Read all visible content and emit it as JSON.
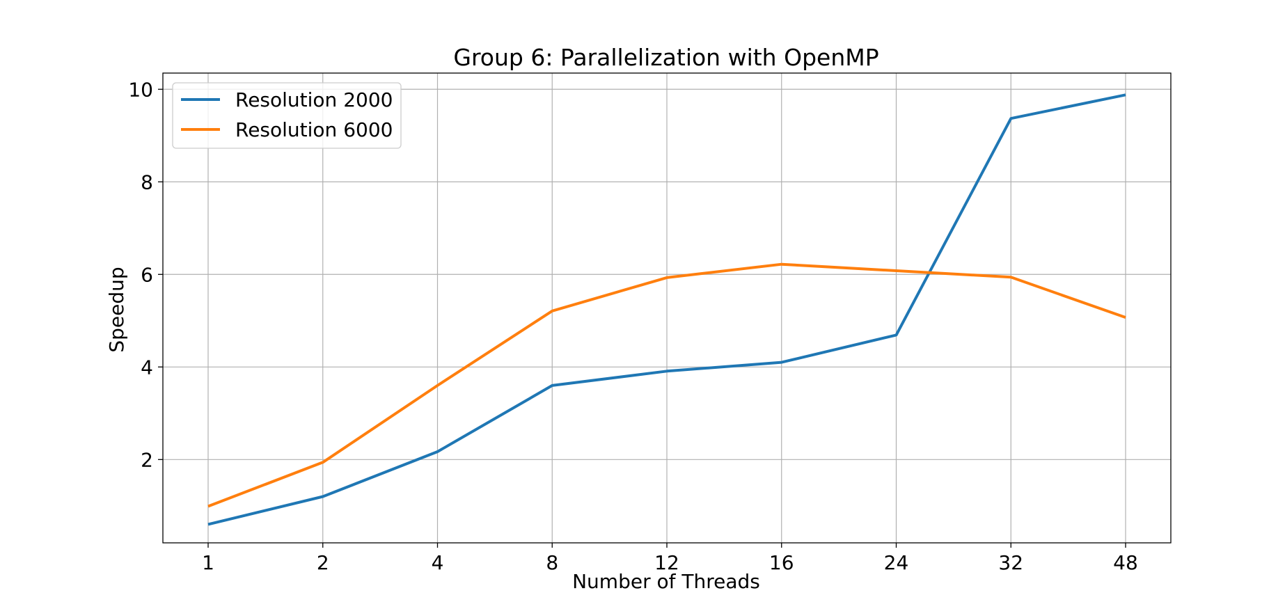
{
  "chart_data": {
    "type": "line",
    "title": "Group 6: Parallelization with OpenMP",
    "xlabel": "Number of Threads",
    "ylabel": "Speedup",
    "categories": [
      "1",
      "2",
      "4",
      "8",
      "12",
      "16",
      "24",
      "32",
      "48"
    ],
    "yticks": [
      2,
      4,
      6,
      8,
      10
    ],
    "ylim": [
      0.2,
      10.35
    ],
    "grid": true,
    "legend_position": "upper-left",
    "series": [
      {
        "name": "Resolution 2000",
        "color": "#1f77b4",
        "values": [
          0.6,
          1.2,
          2.17,
          3.6,
          3.91,
          4.1,
          4.69,
          9.37,
          9.88
        ]
      },
      {
        "name": "Resolution 6000",
        "color": "#ff7f0e",
        "values": [
          0.99,
          1.94,
          3.6,
          5.21,
          5.93,
          6.22,
          6.08,
          5.94,
          5.07
        ]
      }
    ]
  }
}
